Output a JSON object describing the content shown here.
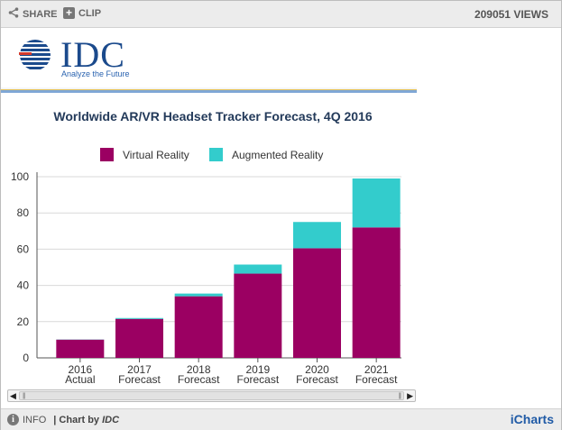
{
  "toolbar": {
    "share_label": "SHARE",
    "clip_label": "CLIP",
    "views": "209051 VIEWS"
  },
  "logo": {
    "wordmark": "IDC",
    "tagline": "Analyze the Future"
  },
  "footer": {
    "info_label": "INFO",
    "credit_prefix": "| Chart by",
    "credit_source": "IDC",
    "brand": "iCharts"
  },
  "colors": {
    "vr": "#9b0062",
    "ar": "#33cccc",
    "grid": "#d9d9d9",
    "axis": "#555555"
  },
  "chart_data": {
    "type": "bar",
    "stacked": true,
    "title": "Worldwide AR/VR Headset Tracker Forecast, 4Q 2016",
    "categories": [
      [
        "2016",
        "Actual"
      ],
      [
        "2017",
        "Forecast"
      ],
      [
        "2018",
        "Forecast"
      ],
      [
        "2019",
        "Forecast"
      ],
      [
        "2020",
        "Forecast"
      ],
      [
        "2021",
        "Forecast"
      ]
    ],
    "series": [
      {
        "name": "Virtual Reality",
        "color": "#9b0062",
        "values": [
          10.1,
          21.5,
          34.0,
          46.5,
          60.5,
          72.0
        ]
      },
      {
        "name": "Augmented Reality",
        "color": "#33cccc",
        "values": [
          0.1,
          0.5,
          1.5,
          5.0,
          14.5,
          27.0
        ]
      }
    ],
    "ylim": [
      0,
      100
    ],
    "yticks": [
      0,
      20,
      40,
      60,
      80,
      100
    ],
    "xlabel": "",
    "ylabel": "",
    "grid": true,
    "legend": "top"
  }
}
